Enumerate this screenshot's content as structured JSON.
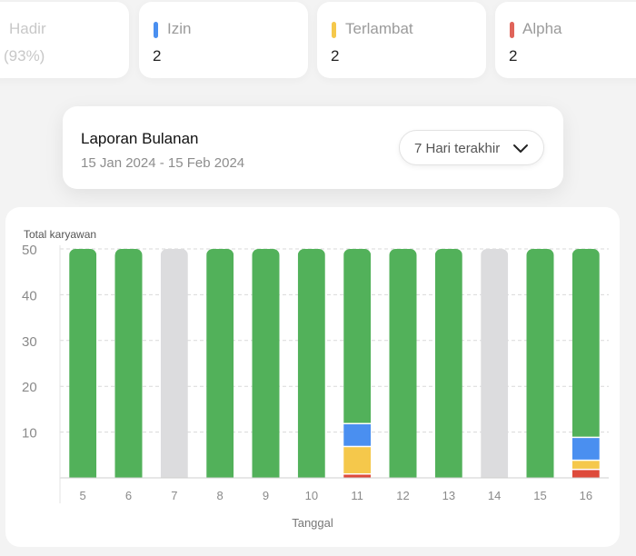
{
  "stats": {
    "hadir": {
      "label": "Hadir",
      "value": "(93%)"
    },
    "izin": {
      "label": "Izin",
      "value": "2",
      "color": "#4a8ff0"
    },
    "terlambat": {
      "label": "Terlambat",
      "value": "2",
      "color": "#f5c84b"
    },
    "alpha": {
      "label": "Alpha",
      "value": "2",
      "color": "#e0645a"
    }
  },
  "report": {
    "title": "Laporan Bulanan",
    "range": "15 Jan 2024 - 15 Feb 2024",
    "period": "7 Hari terakhir"
  },
  "icons": {
    "period_dropdown": "chevron-down-icon"
  },
  "colors": {
    "hadir": "#52b15a",
    "izin": "#4a8ff0",
    "terlambat": "#f5c84b",
    "alpha": "#de4a3b",
    "libur": "#dcdcde"
  },
  "chart_data": {
    "type": "bar",
    "stacked": true,
    "ylabel": "Total karyawan",
    "xlabel": "Tanggal",
    "ylim": [
      0,
      50
    ],
    "yticks": [
      10,
      20,
      30,
      40,
      50
    ],
    "grid": true,
    "categories": [
      "5",
      "6",
      "7",
      "8",
      "9",
      "10",
      "11",
      "12",
      "13",
      "14",
      "15",
      "16"
    ],
    "series": [
      {
        "key": "alpha",
        "values": [
          0,
          0,
          0,
          0,
          0,
          0,
          1,
          0,
          0,
          0,
          0,
          2
        ]
      },
      {
        "key": "terlambat",
        "values": [
          0,
          0,
          0,
          0,
          0,
          0,
          6,
          0,
          0,
          0,
          0,
          2
        ]
      },
      {
        "key": "izin",
        "values": [
          0,
          0,
          0,
          0,
          0,
          0,
          5,
          0,
          0,
          0,
          0,
          5
        ]
      },
      {
        "key": "hadir",
        "values": [
          50,
          50,
          0,
          50,
          50,
          50,
          38,
          50,
          50,
          0,
          50,
          41
        ]
      },
      {
        "key": "libur",
        "values": [
          0,
          0,
          50,
          0,
          0,
          0,
          0,
          0,
          0,
          50,
          0,
          0
        ]
      }
    ]
  }
}
